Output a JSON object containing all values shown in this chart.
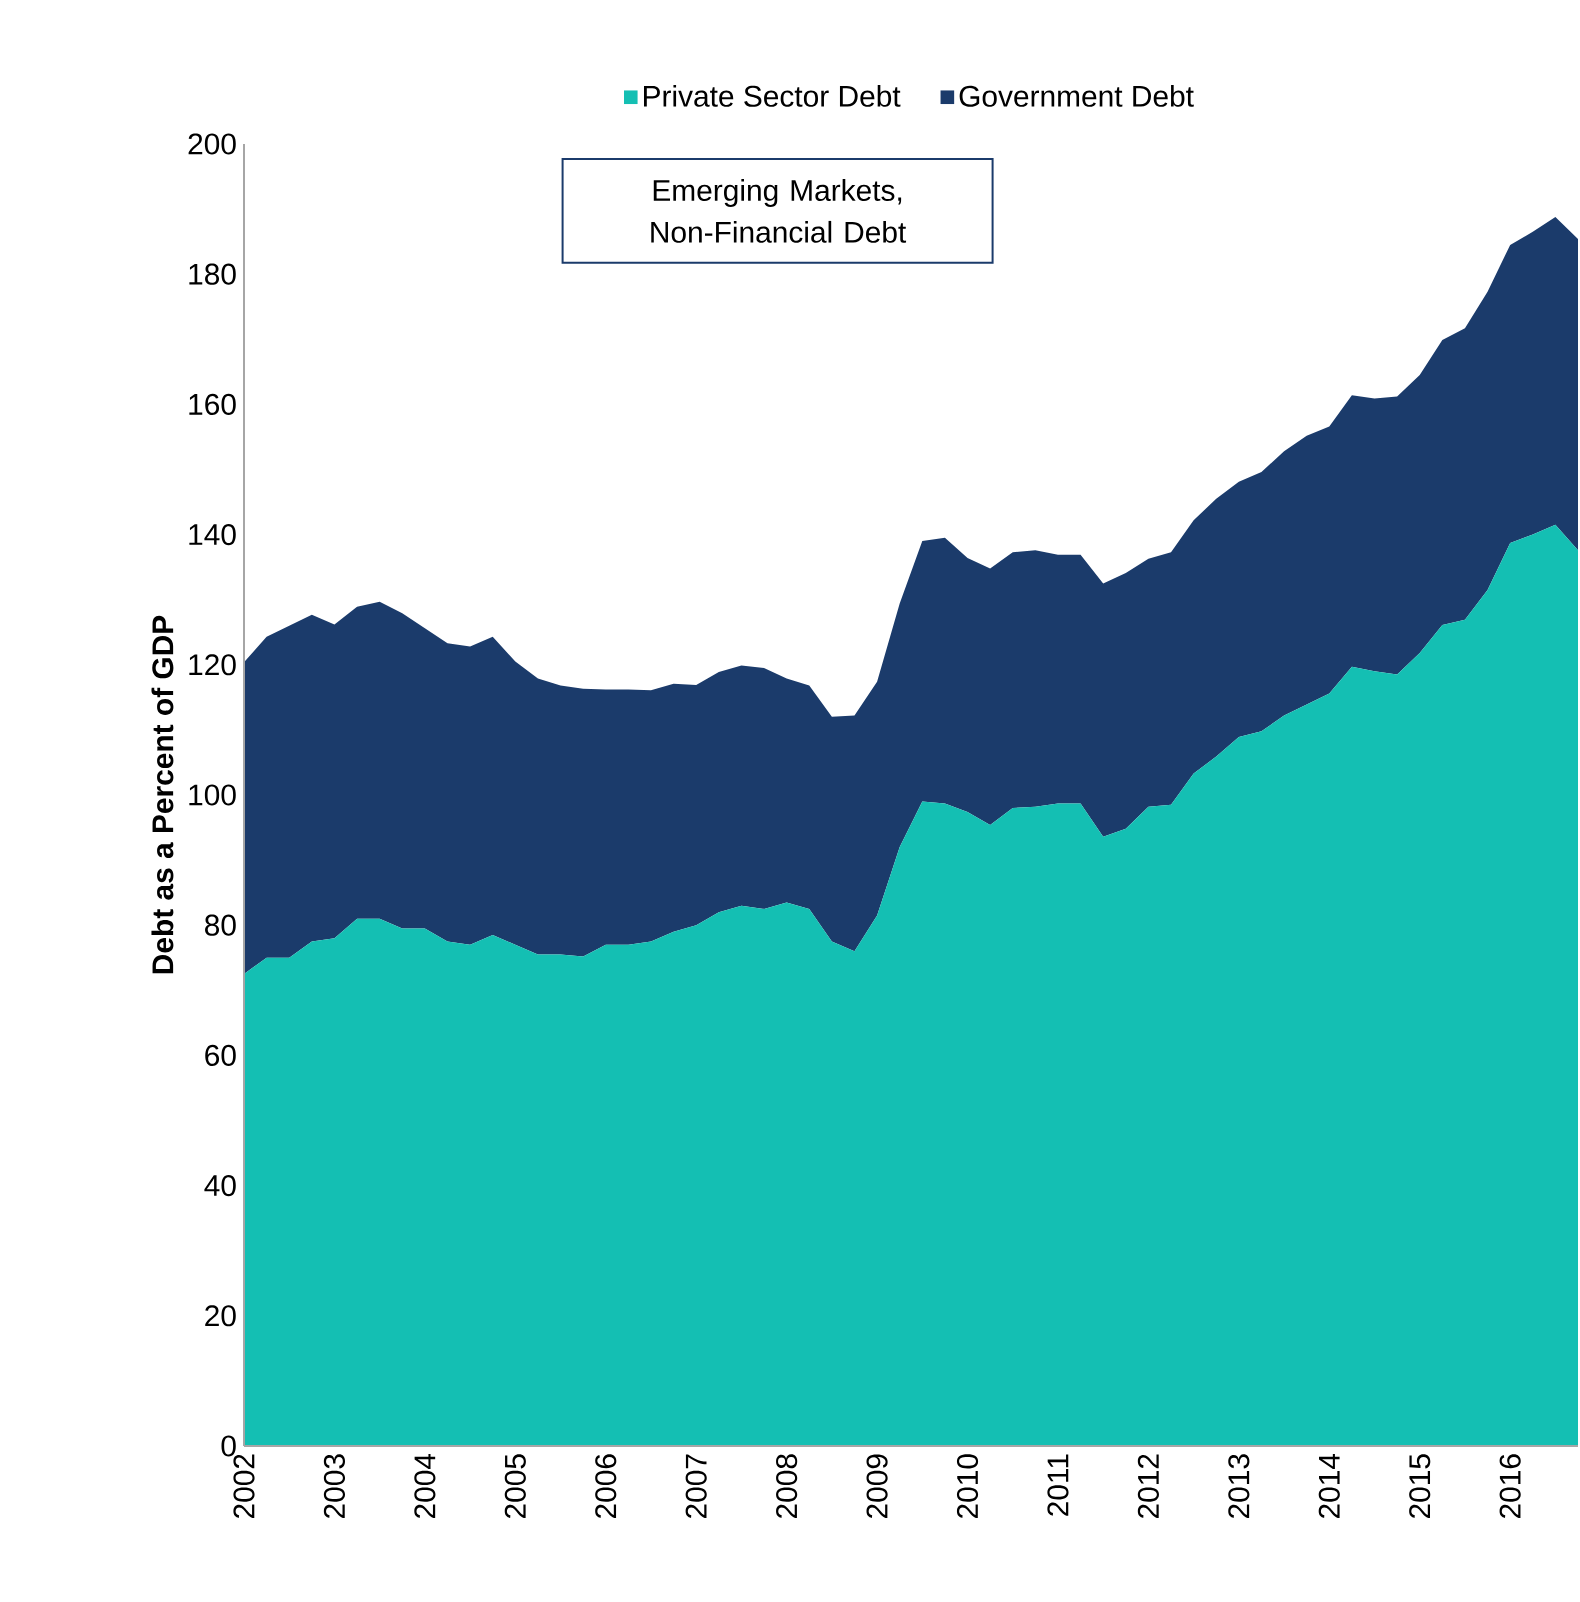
{
  "chart_data": {
    "type": "area",
    "stacked": true,
    "title": "Emerging Markets, Non-Financial Debt",
    "ylabel": "Debt as a Percent of GDP",
    "categories": [
      "2002",
      null,
      null,
      null,
      "2003",
      null,
      null,
      null,
      "2004",
      null,
      null,
      null,
      "2005",
      null,
      null,
      null,
      "2006",
      null,
      null,
      null,
      "2007",
      null,
      null,
      null,
      "2008",
      null,
      null,
      null,
      "2009",
      null,
      null,
      null,
      "2010",
      null,
      null,
      null,
      "2011",
      null,
      null,
      null,
      "2012",
      null,
      null,
      null,
      "2013",
      null,
      null,
      null,
      "2014",
      null,
      null,
      null,
      "2015",
      null,
      null,
      null,
      "2016",
      null,
      null,
      null
    ],
    "series": [
      {
        "name": "Private Sector Debt",
        "color": "#14bfb3",
        "values": [
          72.5,
          75,
          75,
          77.5,
          78,
          81,
          81,
          79.5,
          79.5,
          77.5,
          77,
          78.5,
          77,
          75.5,
          75.5,
          75.2,
          77,
          77,
          77.5,
          79,
          80,
          82,
          83,
          82.5,
          83.5,
          82.5,
          77.5,
          76,
          81.5,
          92,
          99.0,
          98.7,
          97.4,
          95.4,
          98.0,
          98.2,
          98.7,
          98.7,
          93.6,
          94.8,
          98.2,
          98.5,
          103.3,
          105.9,
          108.9,
          109.8,
          112.2,
          113.9,
          115.6,
          119.7,
          119.0,
          118.5,
          121.8,
          126.1,
          126.9,
          131.5,
          138.7,
          140.0,
          141.5,
          137.6
        ]
      },
      {
        "name": "Government Debt",
        "color": "#1b3b6b",
        "values": [
          47.9,
          49.3,
          51,
          50.2,
          48.2,
          47.9,
          48.7,
          48.4,
          46.1,
          45.8,
          45.8,
          45.8,
          43.5,
          42.4,
          41.3,
          41.1,
          39.2,
          39.2,
          38.6,
          38.1,
          36.9,
          36.9,
          36.9,
          37.0,
          34.4,
          34.3,
          34.5,
          36.2,
          35.9,
          37.4,
          40.0,
          40.8,
          39.0,
          39.4,
          39.3,
          39.4,
          38.2,
          38.2,
          38.9,
          39.3,
          38.1,
          38.8,
          38.9,
          39.6,
          39.2,
          39.8,
          40.6,
          41.3,
          41.0,
          41.7,
          41.9,
          42.7,
          42.7,
          43.8,
          44.8,
          45.8,
          45.8,
          46.5,
          47.3,
          47.8
        ]
      }
    ],
    "ylim": [
      0,
      200
    ],
    "yticks": [
      0,
      20,
      40,
      60,
      80,
      100,
      120,
      140,
      160,
      180,
      200
    ],
    "grid": false,
    "legend": "top"
  }
}
